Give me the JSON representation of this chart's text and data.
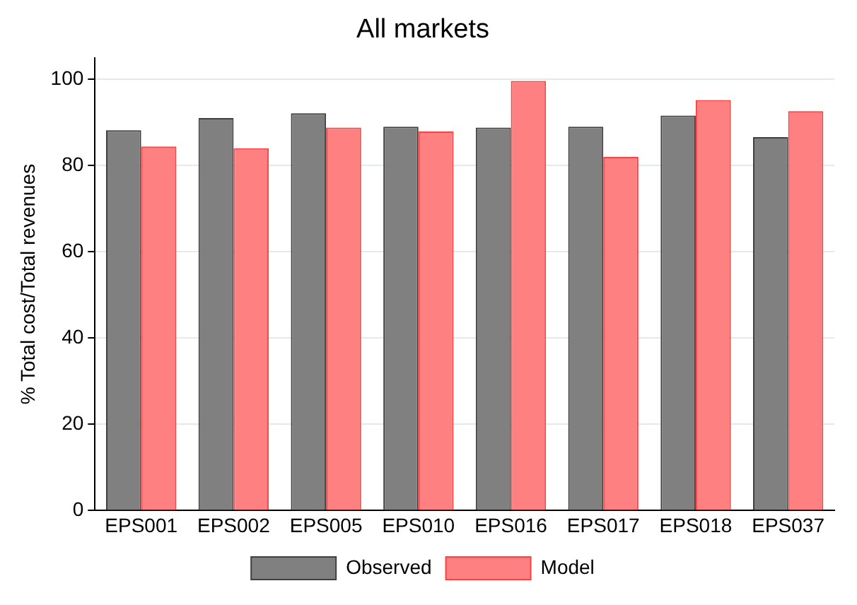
{
  "chart_data": {
    "type": "bar",
    "title": "All markets",
    "ylabel": "% Total cost/Total revenues",
    "categories": [
      "EPS001",
      "EPS002",
      "EPS005",
      "EPS010",
      "EPS016",
      "EPS017",
      "EPS018",
      "EPS037"
    ],
    "series": [
      {
        "name": "Observed",
        "color": "#808080",
        "values": [
          88.2,
          91.0,
          92.1,
          89.0,
          88.8,
          89.0,
          91.6,
          86.6
        ]
      },
      {
        "name": "Model",
        "color": "#ff8080",
        "values": [
          84.4,
          84.0,
          88.8,
          87.9,
          99.6,
          82.0,
          95.2,
          92.6
        ]
      }
    ],
    "ylim": [
      0,
      105
    ],
    "yticks": [
      0,
      20,
      40,
      60,
      80,
      100
    ],
    "grid": "y",
    "legend": "bottom"
  }
}
